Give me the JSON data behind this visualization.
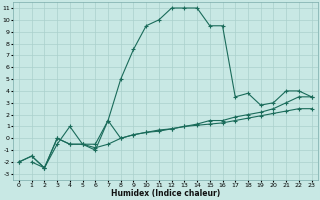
{
  "xlabel": "Humidex (Indice chaleur)",
  "xlim": [
    -0.5,
    23.5
  ],
  "ylim": [
    -3.5,
    11.5
  ],
  "xticks": [
    0,
    1,
    2,
    3,
    4,
    5,
    6,
    7,
    8,
    9,
    10,
    11,
    12,
    13,
    14,
    15,
    16,
    17,
    18,
    19,
    20,
    21,
    22,
    23
  ],
  "yticks": [
    -3,
    -2,
    -1,
    0,
    1,
    2,
    3,
    4,
    5,
    6,
    7,
    8,
    9,
    10,
    11
  ],
  "bg_color": "#c8e8e4",
  "grid_color": "#aad0cc",
  "line_color": "#1a6b5a",
  "line1_x": [
    1,
    2,
    3,
    4,
    5,
    6,
    7,
    8,
    9,
    10,
    11,
    12,
    13,
    14,
    15,
    16,
    17,
    18,
    19,
    20,
    21,
    22,
    23
  ],
  "line1_y": [
    -2,
    -2.5,
    -0.5,
    1.0,
    -0.5,
    -0.5,
    1.5,
    5.0,
    7.5,
    9.5,
    10.0,
    11.0,
    11.0,
    11.0,
    9.5,
    9.5,
    3.5,
    3.8,
    2.8,
    3.0,
    4.0,
    4.0,
    3.5
  ],
  "line2_x": [
    0,
    1,
    2,
    3,
    4,
    5,
    6,
    7,
    8,
    9,
    10,
    11,
    12,
    13,
    14,
    15,
    16,
    17,
    18,
    19,
    20,
    21,
    22,
    23
  ],
  "line2_y": [
    -2,
    -1.5,
    -2.5,
    0.0,
    -0.5,
    -0.5,
    -1.0,
    1.5,
    0.0,
    0.3,
    0.5,
    0.7,
    0.8,
    1.0,
    1.2,
    1.5,
    1.5,
    1.8,
    2.0,
    2.2,
    2.5,
    3.0,
    3.5,
    3.5
  ],
  "line3_x": [
    0,
    1,
    2,
    3,
    4,
    5,
    6,
    7,
    8,
    9,
    10,
    11,
    12,
    13,
    14,
    15,
    16,
    17,
    18,
    19,
    20,
    21,
    22,
    23
  ],
  "line3_y": [
    -2,
    -1.5,
    -2.5,
    0.0,
    -0.5,
    -0.5,
    -0.8,
    -0.5,
    0.0,
    0.3,
    0.5,
    0.6,
    0.8,
    1.0,
    1.1,
    1.2,
    1.3,
    1.5,
    1.7,
    1.9,
    2.1,
    2.3,
    2.5,
    2.5
  ]
}
